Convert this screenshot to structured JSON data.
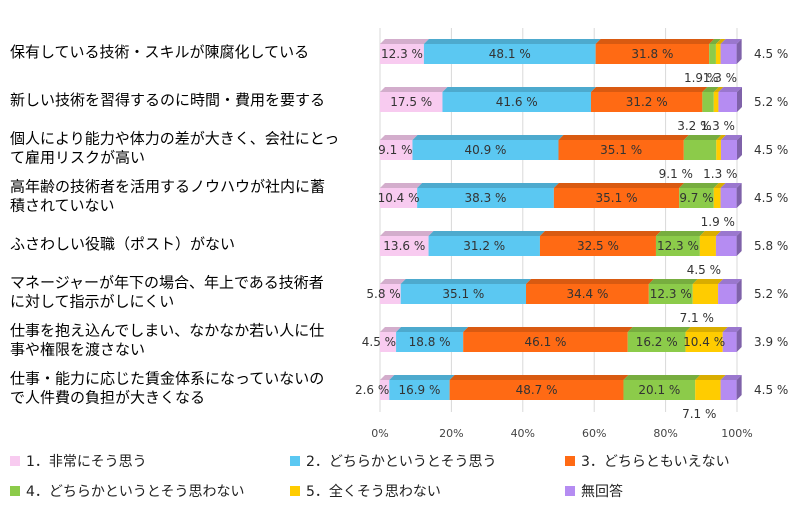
{
  "chart_data": {
    "type": "bar",
    "orientation": "horizontal",
    "stacked": true,
    "percent_stacked": true,
    "categories": [
      [
        "保有している技術・スキルが陳腐化している"
      ],
      [
        "新しい技術を習得するのに時間・費用を要する"
      ],
      [
        "個人により能力や体力の差が大きく、会社にとっ",
        "て雇用リスクが高い"
      ],
      [
        "高年齢の技術者を活用するノウハウが社内に蓄",
        "積されていない"
      ],
      [
        "ふさわしい役職（ポスト）がない"
      ],
      [
        "マネージャーが年下の場合、年上である技術者",
        "に対して指示がしにくい"
      ],
      [
        "仕事を抱え込んでしまい、なかなか若い人に仕",
        "事や権限を渡さない"
      ],
      [
        "仕事・能力に応じた賃金体系になっていないの",
        "で人件費の負担が大きくなる"
      ]
    ],
    "series": [
      {
        "name": "1．非常にそう思う",
        "color": "#F8CBF0",
        "values": [
          12.3,
          17.5,
          9.1,
          10.4,
          13.6,
          5.8,
          4.5,
          2.6
        ],
        "labels": [
          "12.3 %",
          "17.5 %",
          "9.1 %",
          "10.4 %",
          "13.6 %",
          "5.8 %",
          "4.5 %",
          "2.6 %"
        ]
      },
      {
        "name": "2．どちらかというとそう思う",
        "color": "#5BC8F2",
        "values": [
          48.1,
          41.6,
          40.9,
          38.3,
          31.2,
          35.1,
          18.8,
          16.9
        ],
        "labels": [
          "48.1 %",
          "41.6 %",
          "40.9 %",
          "38.3 %",
          "31.2 %",
          "35.1 %",
          "18.8 %",
          "16.9 %"
        ]
      },
      {
        "name": "3．どちらともいえない",
        "color": "#FF6A14",
        "values": [
          31.8,
          31.2,
          35.1,
          35.1,
          32.5,
          34.4,
          46.1,
          48.7
        ],
        "labels": [
          "31.8 %",
          "31.2 %",
          "35.1 %",
          "35.1 %",
          "32.5 %",
          "34.4 %",
          "46.1 %",
          "48.7 %"
        ]
      },
      {
        "name": "4．どちらかというとそう思わない",
        "color": "#8CCB4A",
        "values": [
          1.9,
          3.2,
          9.1,
          9.7,
          12.3,
          12.3,
          16.2,
          20.1
        ],
        "labels": [
          "1.9 %",
          "3.2 %",
          "9.1 %",
          "9.7 %",
          "12.3 %",
          "12.3 %",
          "16.2 %",
          "20.1 %"
        ]
      },
      {
        "name": "5．全くそう思わない",
        "color": "#FFCC00",
        "values": [
          1.3,
          1.3,
          1.3,
          1.9,
          4.5,
          7.1,
          10.4,
          7.1
        ],
        "labels": [
          "1.3 %",
          "1.3 %",
          "1.3 %",
          "1.9 %",
          "4.5 %",
          "7.1 %",
          "10.4 %",
          "7.1 %"
        ]
      },
      {
        "name": "無回答",
        "color": "#B58CF2",
        "values": [
          4.5,
          5.2,
          4.5,
          4.5,
          5.8,
          5.2,
          3.9,
          4.5
        ],
        "labels": [
          "4.5 %",
          "5.2 %",
          "4.5 %",
          "4.5 %",
          "5.8 %",
          "5.2 %",
          "3.9 %",
          "4.5 %"
        ]
      }
    ],
    "xlim": [
      0,
      100
    ],
    "xticks": [
      "0%",
      "20%",
      "40%",
      "60%",
      "80%",
      "100%"
    ],
    "grid": true,
    "legend_position": "bottom",
    "title": "",
    "xlabel": "",
    "ylabel": ""
  }
}
